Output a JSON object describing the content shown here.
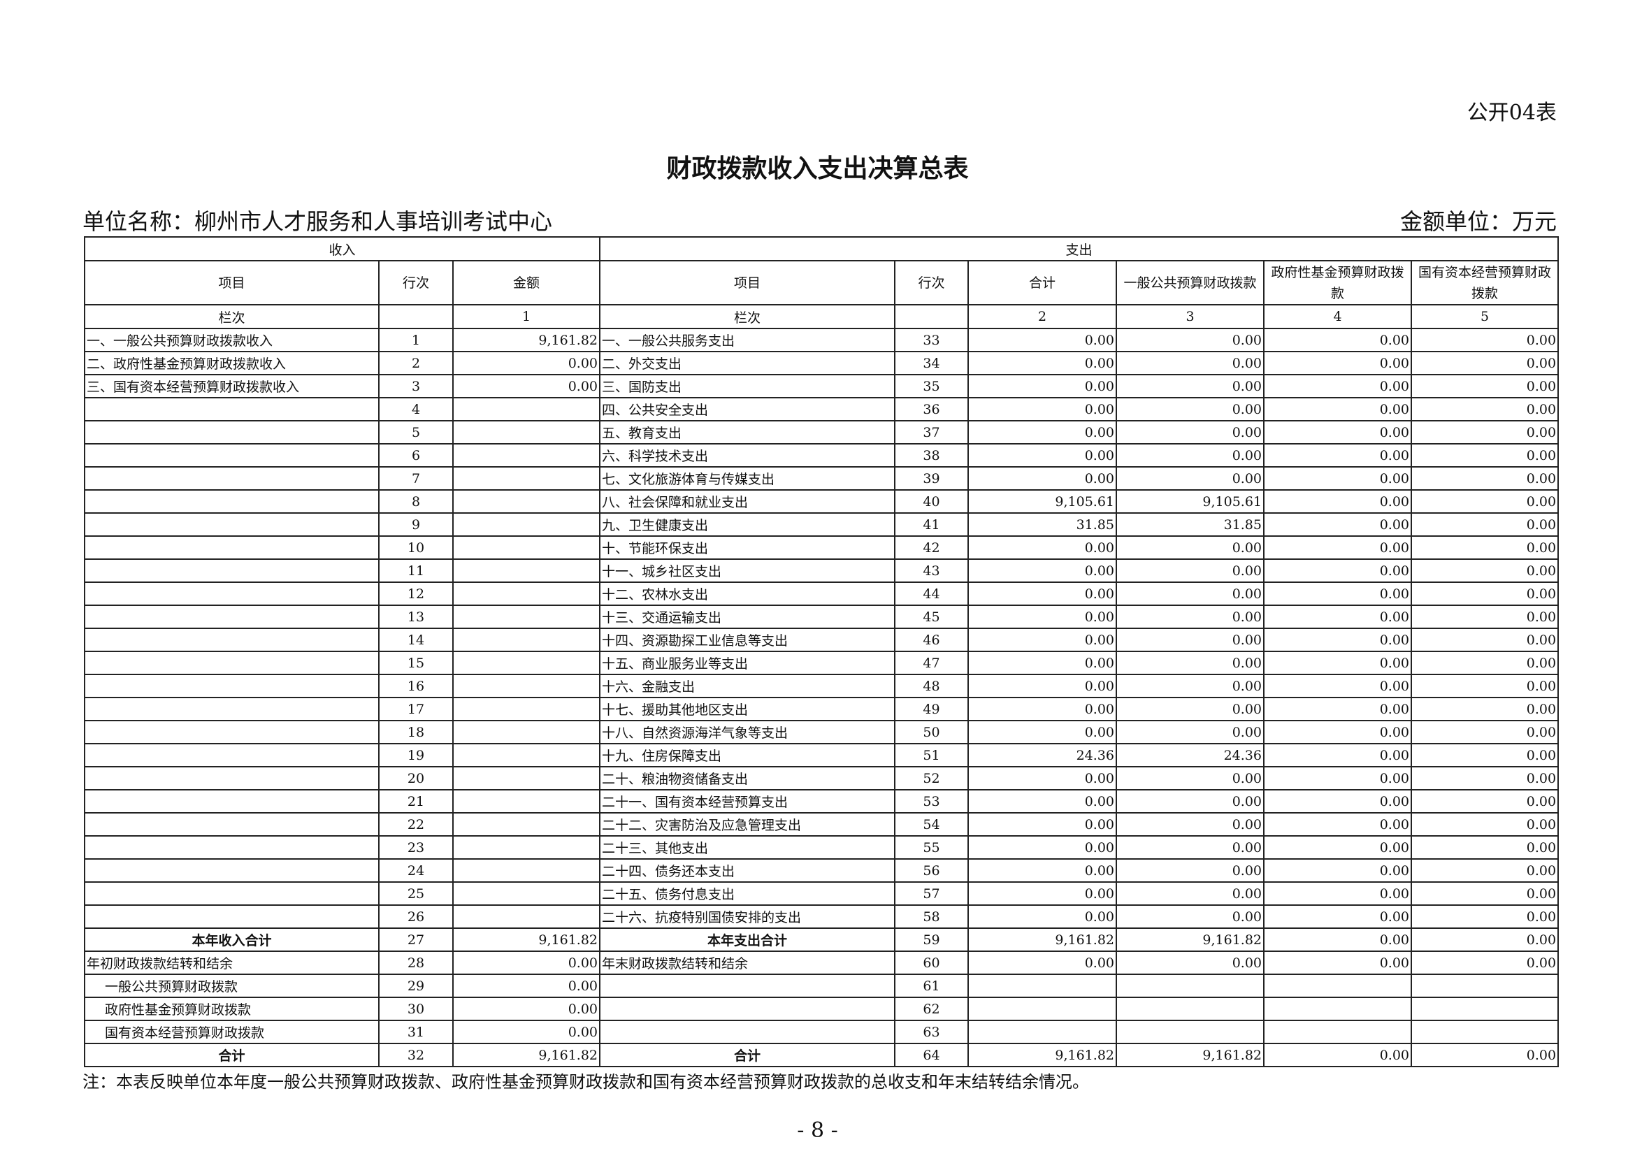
{
  "form_no": "公开04表",
  "title": "财政拨款收入支出决算总表",
  "unit_name": "单位名称：柳州市人才服务和人事培训考试中心",
  "unit_money": "金额单位：万元",
  "header": {
    "income": "收入",
    "expense": "支出",
    "cols": [
      "项目",
      "行次",
      "金额",
      "项目",
      "行次",
      "合计",
      "一般公共预算财政拨款",
      "政府性基金预算财政拨款",
      "国有资本经营预算财政拨款"
    ],
    "col_index_label": "栏次",
    "col_numbers": [
      "",
      "1",
      "",
      "",
      "2",
      "3",
      "4",
      "5"
    ]
  },
  "rows": [
    {
      "in": [
        "一、一般公共预算财政拨款收入",
        "1",
        "9,161.82"
      ],
      "ex": [
        "一、一般公共服务支出",
        "33",
        "0.00",
        "0.00",
        "0.00",
        "0.00"
      ]
    },
    {
      "in": [
        "二、政府性基金预算财政拨款收入",
        "2",
        "0.00"
      ],
      "ex": [
        "二、外交支出",
        "34",
        "0.00",
        "0.00",
        "0.00",
        "0.00"
      ]
    },
    {
      "in": [
        "三、国有资本经营预算财政拨款收入",
        "3",
        "0.00"
      ],
      "ex": [
        "三、国防支出",
        "35",
        "0.00",
        "0.00",
        "0.00",
        "0.00"
      ]
    },
    {
      "in": [
        "",
        "4",
        ""
      ],
      "ex": [
        "四、公共安全支出",
        "36",
        "0.00",
        "0.00",
        "0.00",
        "0.00"
      ]
    },
    {
      "in": [
        "",
        "5",
        ""
      ],
      "ex": [
        "五、教育支出",
        "37",
        "0.00",
        "0.00",
        "0.00",
        "0.00"
      ]
    },
    {
      "in": [
        "",
        "6",
        ""
      ],
      "ex": [
        "六、科学技术支出",
        "38",
        "0.00",
        "0.00",
        "0.00",
        "0.00"
      ]
    },
    {
      "in": [
        "",
        "7",
        ""
      ],
      "ex": [
        "七、文化旅游体育与传媒支出",
        "39",
        "0.00",
        "0.00",
        "0.00",
        "0.00"
      ]
    },
    {
      "in": [
        "",
        "8",
        ""
      ],
      "ex": [
        "八、社会保障和就业支出",
        "40",
        "9,105.61",
        "9,105.61",
        "0.00",
        "0.00"
      ]
    },
    {
      "in": [
        "",
        "9",
        ""
      ],
      "ex": [
        "九、卫生健康支出",
        "41",
        "31.85",
        "31.85",
        "0.00",
        "0.00"
      ]
    },
    {
      "in": [
        "",
        "10",
        ""
      ],
      "ex": [
        "十、节能环保支出",
        "42",
        "0.00",
        "0.00",
        "0.00",
        "0.00"
      ]
    },
    {
      "in": [
        "",
        "11",
        ""
      ],
      "ex": [
        "十一、城乡社区支出",
        "43",
        "0.00",
        "0.00",
        "0.00",
        "0.00"
      ]
    },
    {
      "in": [
        "",
        "12",
        ""
      ],
      "ex": [
        "十二、农林水支出",
        "44",
        "0.00",
        "0.00",
        "0.00",
        "0.00"
      ]
    },
    {
      "in": [
        "",
        "13",
        ""
      ],
      "ex": [
        "十三、交通运输支出",
        "45",
        "0.00",
        "0.00",
        "0.00",
        "0.00"
      ]
    },
    {
      "in": [
        "",
        "14",
        ""
      ],
      "ex": [
        "十四、资源勘探工业信息等支出",
        "46",
        "0.00",
        "0.00",
        "0.00",
        "0.00"
      ]
    },
    {
      "in": [
        "",
        "15",
        ""
      ],
      "ex": [
        "十五、商业服务业等支出",
        "47",
        "0.00",
        "0.00",
        "0.00",
        "0.00"
      ]
    },
    {
      "in": [
        "",
        "16",
        ""
      ],
      "ex": [
        "十六、金融支出",
        "48",
        "0.00",
        "0.00",
        "0.00",
        "0.00"
      ]
    },
    {
      "in": [
        "",
        "17",
        ""
      ],
      "ex": [
        "十七、援助其他地区支出",
        "49",
        "0.00",
        "0.00",
        "0.00",
        "0.00"
      ]
    },
    {
      "in": [
        "",
        "18",
        ""
      ],
      "ex": [
        "十八、自然资源海洋气象等支出",
        "50",
        "0.00",
        "0.00",
        "0.00",
        "0.00"
      ]
    },
    {
      "in": [
        "",
        "19",
        ""
      ],
      "ex": [
        "十九、住房保障支出",
        "51",
        "24.36",
        "24.36",
        "0.00",
        "0.00"
      ]
    },
    {
      "in": [
        "",
        "20",
        ""
      ],
      "ex": [
        "二十、粮油物资储备支出",
        "52",
        "0.00",
        "0.00",
        "0.00",
        "0.00"
      ]
    },
    {
      "in": [
        "",
        "21",
        ""
      ],
      "ex": [
        "二十一、国有资本经营预算支出",
        "53",
        "0.00",
        "0.00",
        "0.00",
        "0.00"
      ]
    },
    {
      "in": [
        "",
        "22",
        ""
      ],
      "ex": [
        "二十二、灾害防治及应急管理支出",
        "54",
        "0.00",
        "0.00",
        "0.00",
        "0.00"
      ]
    },
    {
      "in": [
        "",
        "23",
        ""
      ],
      "ex": [
        "二十三、其他支出",
        "55",
        "0.00",
        "0.00",
        "0.00",
        "0.00"
      ]
    },
    {
      "in": [
        "",
        "24",
        ""
      ],
      "ex": [
        "二十四、债务还本支出",
        "56",
        "0.00",
        "0.00",
        "0.00",
        "0.00"
      ]
    },
    {
      "in": [
        "",
        "25",
        ""
      ],
      "ex": [
        "二十五、债务付息支出",
        "57",
        "0.00",
        "0.00",
        "0.00",
        "0.00"
      ]
    },
    {
      "in": [
        "",
        "26",
        ""
      ],
      "ex": [
        "二十六、抗疫特别国债安排的支出",
        "58",
        "0.00",
        "0.00",
        "0.00",
        "0.00"
      ]
    },
    {
      "style": "bold",
      "in": [
        "本年收入合计",
        "27",
        "9,161.82"
      ],
      "ex": [
        "本年支出合计",
        "59",
        "9,161.82",
        "9,161.82",
        "0.00",
        "0.00"
      ]
    },
    {
      "in": [
        "年初财政拨款结转和结余",
        "28",
        "0.00"
      ],
      "ex": [
        "年末财政拨款结转和结余",
        "60",
        "0.00",
        "0.00",
        "0.00",
        "0.00"
      ]
    },
    {
      "indent": true,
      "in": [
        "一般公共预算财政拨款",
        "29",
        "0.00"
      ],
      "ex": [
        "",
        "61",
        "",
        "",
        "",
        ""
      ]
    },
    {
      "indent": true,
      "in": [
        "政府性基金预算财政拨款",
        "30",
        "0.00"
      ],
      "ex": [
        "",
        "62",
        "",
        "",
        "",
        ""
      ]
    },
    {
      "indent": true,
      "in": [
        "国有资本经营预算财政拨款",
        "31",
        "0.00"
      ],
      "ex": [
        "",
        "63",
        "",
        "",
        "",
        ""
      ]
    },
    {
      "style": "bold",
      "in": [
        "合计",
        "32",
        "9,161.82"
      ],
      "ex": [
        "合计",
        "64",
        "9,161.82",
        "9,161.82",
        "0.00",
        "0.00"
      ]
    }
  ],
  "note": "注：本表反映单位本年度一般公共预算财政拨款、政府性基金预算财政拨款和国有资本经营预算财政拨款的总收支和年末结转结余情况。",
  "page_number": "- 8 -"
}
